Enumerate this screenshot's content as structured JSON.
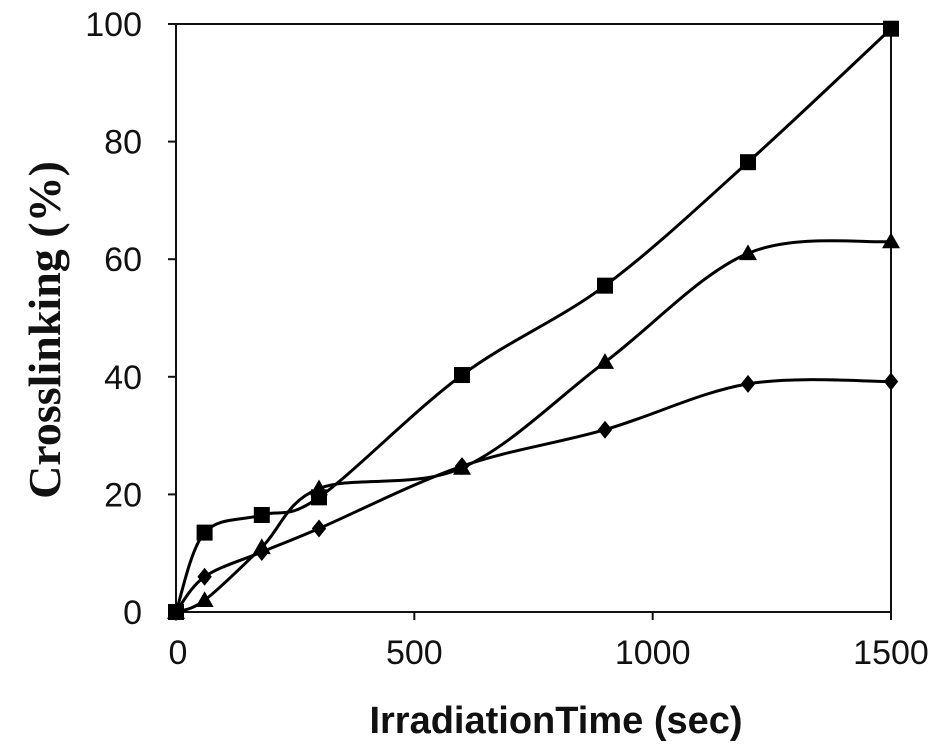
{
  "chart_data": {
    "type": "line",
    "title": "",
    "xlabel": "IrradiationTime (sec)",
    "ylabel": "Crosslinking (%)",
    "xlim": [
      0,
      1500
    ],
    "ylim": [
      0,
      100
    ],
    "xticks": [
      0,
      500,
      1000,
      1500
    ],
    "yticks": [
      0,
      20,
      40,
      60,
      80,
      100
    ],
    "grid": false,
    "legend": "none",
    "series": [
      {
        "name": "square",
        "marker": "square",
        "x": [
          0,
          60,
          180,
          300,
          600,
          900,
          1200,
          1500
        ],
        "y": [
          0,
          13.5,
          16.5,
          19.5,
          40.3,
          55.5,
          76.5,
          99.2
        ]
      },
      {
        "name": "triangle",
        "marker": "triangle",
        "x": [
          0,
          60,
          180,
          300,
          600,
          900,
          1200,
          1500
        ],
        "y": [
          0,
          2,
          11,
          21,
          24.5,
          42.5,
          61,
          63
        ]
      },
      {
        "name": "diamond",
        "marker": "diamond",
        "x": [
          0,
          60,
          180,
          300,
          600,
          900,
          1200,
          1500
        ],
        "y": [
          0,
          6,
          10.2,
          14.2,
          24.8,
          31,
          38.8,
          39.2
        ]
      }
    ]
  }
}
